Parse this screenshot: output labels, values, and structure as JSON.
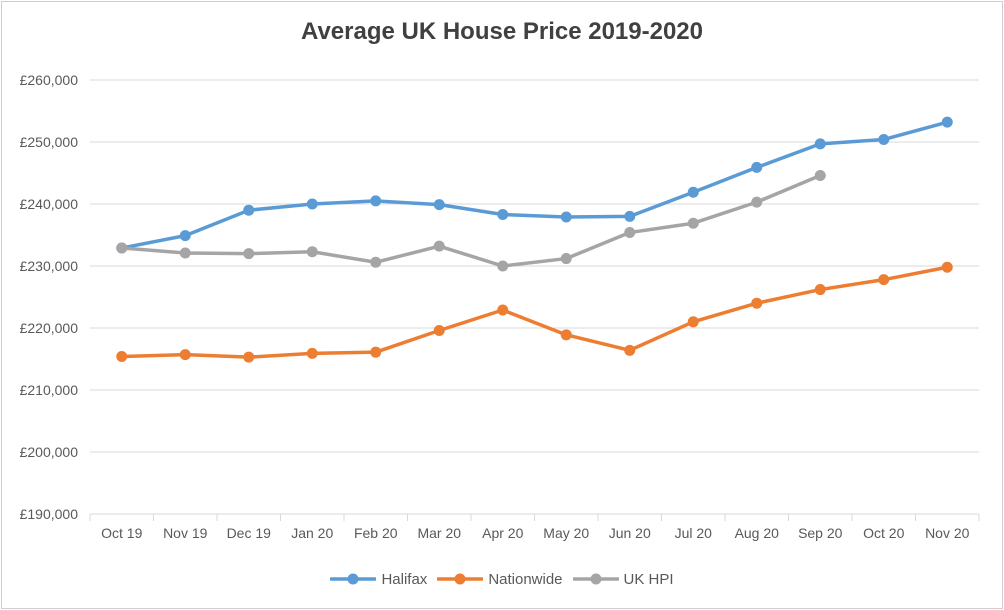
{
  "title": "Average UK House Price 2019-2020",
  "colors": {
    "halifax": "#5B9BD5",
    "nationwide": "#ED7D31",
    "uk_hpi": "#A5A5A5",
    "gridline": "#D9D9D9",
    "axis_text": "#595959",
    "title_text": "#404040",
    "border": "#D0CECE"
  },
  "chart_data": {
    "type": "line",
    "title": "Average UK House Price 2019-2020",
    "xlabel": "",
    "ylabel": "",
    "categories": [
      "Oct 19",
      "Nov 19",
      "Dec 19",
      "Jan 20",
      "Feb 20",
      "Mar 20",
      "Apr 20",
      "May 20",
      "Jun 20",
      "Jul 20",
      "Aug 20",
      "Sep 20",
      "Oct 20",
      "Nov 20"
    ],
    "series": [
      {
        "name": "Halifax",
        "color": "#5B9BD5",
        "values": [
          232900,
          234900,
          239000,
          240000,
          240500,
          239900,
          238300,
          237900,
          238000,
          241900,
          245900,
          249700,
          250400,
          253200
        ]
      },
      {
        "name": "Nationwide",
        "color": "#ED7D31",
        "values": [
          215400,
          215700,
          215300,
          215900,
          216100,
          219600,
          222900,
          218900,
          216400,
          221000,
          224000,
          226200,
          227800,
          229800
        ]
      },
      {
        "name": "UK HPI",
        "color": "#A5A5A5",
        "values": [
          232900,
          232100,
          232000,
          232300,
          230600,
          233200,
          230000,
          231200,
          235400,
          236900,
          240300,
          244600
        ]
      }
    ],
    "ylim": [
      190000,
      260000
    ],
    "ytick_step": 10000,
    "ytick_labels": [
      "£190,000",
      "£200,000",
      "£210,000",
      "£220,000",
      "£230,000",
      "£240,000",
      "£250,000",
      "£260,000"
    ],
    "grid": true,
    "legend_position": "bottom",
    "currency_prefix": "£"
  },
  "legend": {
    "items": [
      "Halifax",
      "Nationwide",
      "UK HPI"
    ]
  }
}
